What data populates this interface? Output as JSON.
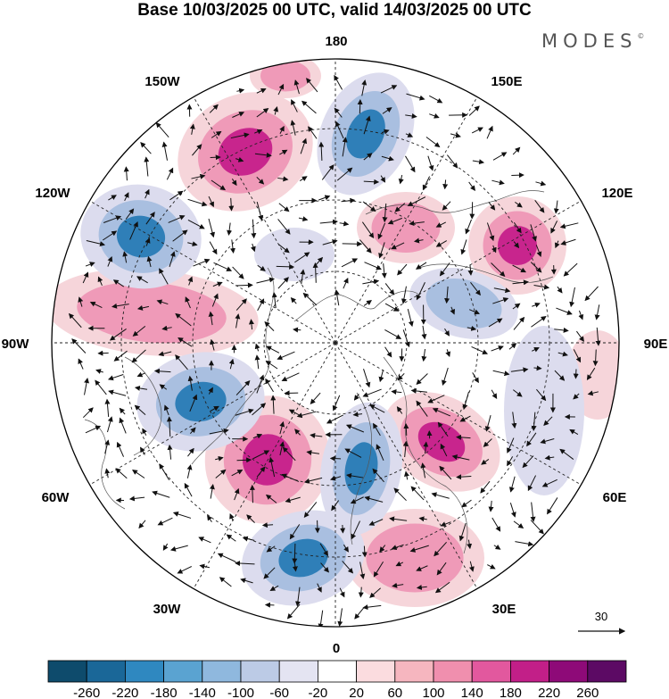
{
  "title": "Base 10/03/2025 00 UTC, valid 14/03/2025 00 UTC",
  "brand": {
    "name": "MODES",
    "mark": "©"
  },
  "map": {
    "projection": "north-polar-stereographic",
    "longitude_labels": [
      "180",
      "150E",
      "120E",
      "90E",
      "60E",
      "30E",
      "0",
      "30W",
      "60W",
      "90W",
      "120W",
      "150W"
    ],
    "reference_vector": {
      "label": "30"
    }
  },
  "colorbar": {
    "colors": [
      "#0e4b6c",
      "#1a6798",
      "#2f88c0",
      "#5aa3d1",
      "#8fb8de",
      "#bccbe6",
      "#e4e4f2",
      "#ffffff",
      "#fbdcdf",
      "#f6b6bf",
      "#f08fae",
      "#e2589e",
      "#c21f88",
      "#8e0a78",
      "#5c0a64"
    ],
    "tick_labels": [
      "-260",
      "-220",
      "-180",
      "-140",
      "-100",
      "-60",
      "-20",
      "20",
      "60",
      "100",
      "140",
      "180",
      "220",
      "260"
    ]
  },
  "anomaly_colors": {
    "strong_negative": "#2f7fb8",
    "negative": "#a9bfe0",
    "weak_negative": "#dcdcee",
    "weak_positive": "#f6d5da",
    "positive": "#ef9ab8",
    "strong_positive": "#c8258d"
  }
}
